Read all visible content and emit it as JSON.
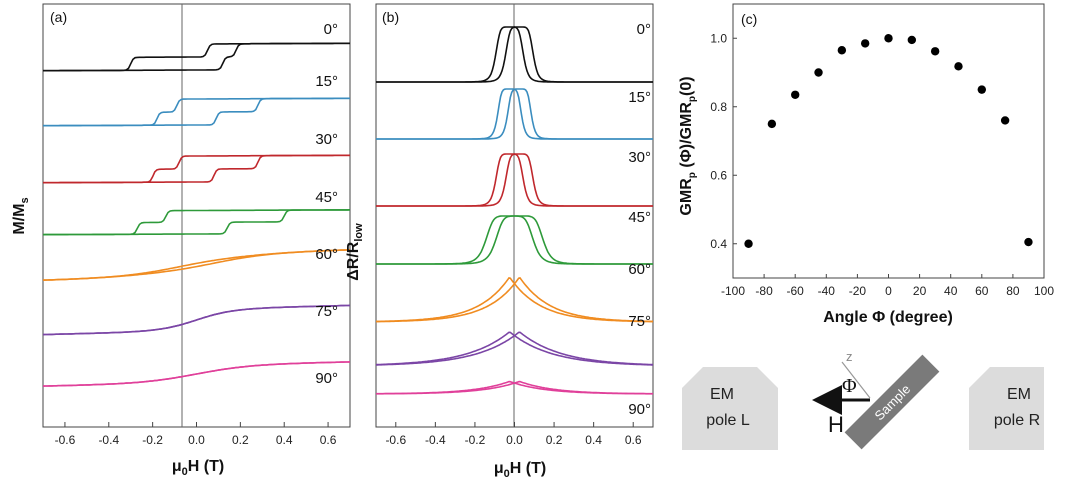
{
  "chart_data": [
    {
      "panel": "(a)",
      "type": "line",
      "xlabel": "μ0H (T)",
      "ylabel": "M/Ms",
      "xlim": [
        -0.7,
        0.7
      ],
      "xticks": [
        "-0.6",
        "-0.4",
        "-0.2",
        "0.0",
        "0.2",
        "0.4",
        "0.6"
      ],
      "series": [
        {
          "name": "0°",
          "color": "#111111"
        },
        {
          "name": "15°",
          "color": "#3b8dbf"
        },
        {
          "name": "30°",
          "color": "#c0282d"
        },
        {
          "name": "45°",
          "color": "#2e9a3a"
        },
        {
          "name": "60°",
          "color": "#f08c21"
        },
        {
          "name": "75°",
          "color": "#7b46a6"
        },
        {
          "name": "90°",
          "color": "#e0409a"
        }
      ]
    },
    {
      "panel": "(b)",
      "type": "line",
      "xlabel": "μ0H (T)",
      "ylabel": "ΔR/Rlow",
      "xlim": [
        -0.7,
        0.7
      ],
      "xticks": [
        "-0.6",
        "-0.4",
        "-0.2",
        "0.0",
        "0.2",
        "0.4",
        "0.6"
      ],
      "series": [
        {
          "name": "0°",
          "color": "#111111"
        },
        {
          "name": "15°",
          "color": "#3b8dbf"
        },
        {
          "name": "30°",
          "color": "#c0282d"
        },
        {
          "name": "45°",
          "color": "#2e9a3a"
        },
        {
          "name": "60°",
          "color": "#f08c21"
        },
        {
          "name": "75°",
          "color": "#7b46a6"
        },
        {
          "name": "90°",
          "color": "#e0409a"
        }
      ]
    },
    {
      "panel": "(c)",
      "type": "scatter",
      "xlabel": "Angle Φ (degree)",
      "ylabel": "GMRp(Φ)/GMRp(0)",
      "xlim": [
        -100,
        100
      ],
      "ylim": [
        0.3,
        1.1
      ],
      "xticks": [
        -100,
        -80,
        -60,
        -40,
        -20,
        0,
        20,
        40,
        60,
        80,
        100
      ],
      "yticks": [
        "0.4",
        "0.6",
        "0.8",
        "1.0"
      ],
      "x": [
        -90,
        -75,
        -60,
        -45,
        -30,
        -15,
        0,
        15,
        30,
        45,
        60,
        75,
        90
      ],
      "y": [
        0.4,
        0.75,
        0.835,
        0.9,
        0.965,
        0.985,
        1.0,
        0.995,
        0.962,
        0.918,
        0.85,
        0.76,
        0.405
      ]
    }
  ],
  "schematic": {
    "pole_left": [
      "EM",
      "pole L"
    ],
    "pole_right": [
      "EM",
      "pole R"
    ],
    "sample_label": "Sample",
    "field_label": "H",
    "angle_symbol": "Φ",
    "axis_label": "z"
  }
}
